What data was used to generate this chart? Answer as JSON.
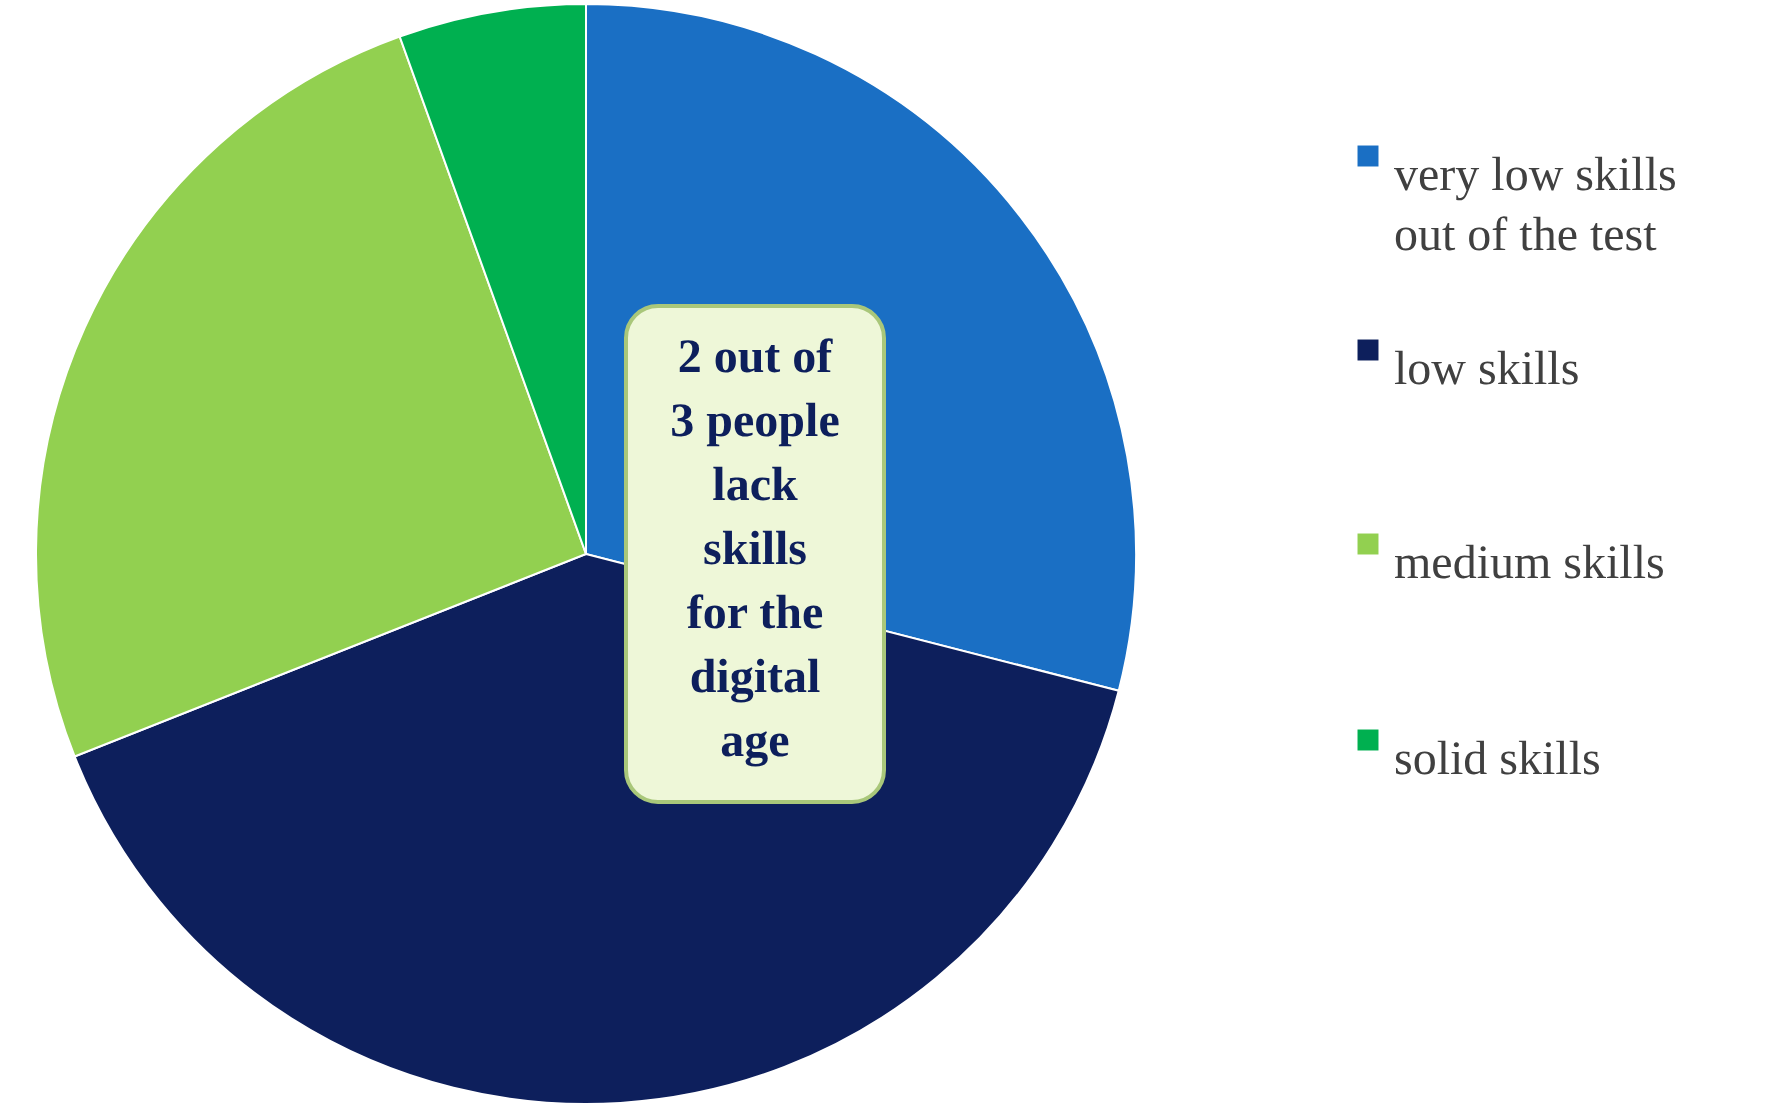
{
  "chart_data": {
    "type": "pie",
    "categories": [
      "very low skills out of the test",
      "low skills",
      "medium skills",
      "solid skills"
    ],
    "values": [
      29,
      40,
      25.5,
      5.5
    ],
    "colors": [
      "#1a6fc4",
      "#0d1f5c",
      "#92d050",
      "#00b050"
    ],
    "annotations": [
      "2 out of 3 people lack skills for the digital age"
    ],
    "legend": "right"
  }
}
